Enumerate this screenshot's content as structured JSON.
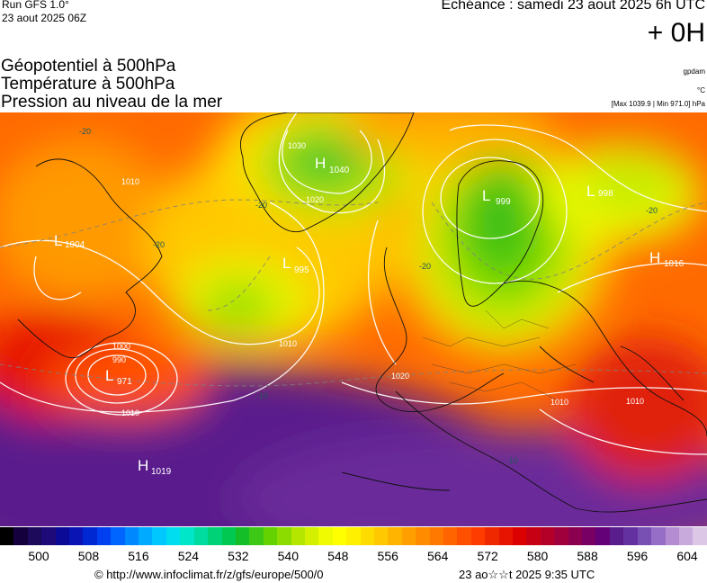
{
  "header": {
    "run_title": "Run GFS 1.0°",
    "run_date": "23 aout 2025 06Z",
    "echeance": "Echéance : samedi 23 aout 2025 6h UTC",
    "lead": "+ 0H"
  },
  "variables": {
    "line1": "Géopotentiel à 500hPa",
    "line2": "Température à 500hPa",
    "line3": "Pression au niveau de la mer",
    "unit1": "gpdam",
    "unit2": "°C",
    "unit3": "[Max 1039.9 | Min 971.0] hPa"
  },
  "map": {
    "pressure_centers": [
      {
        "type": "H",
        "value": "1040"
      },
      {
        "type": "L",
        "value": "999"
      },
      {
        "type": "L",
        "value": "998"
      },
      {
        "type": "L",
        "value": "1004"
      },
      {
        "type": "L",
        "value": "995"
      },
      {
        "type": "H",
        "value": "1016"
      },
      {
        "type": "L",
        "value": "971"
      },
      {
        "type": "H",
        "value": "1019"
      }
    ],
    "isobar_labels": [
      "1010",
      "1020",
      "1030",
      "1000",
      "990",
      "1020",
      "1010",
      "1010",
      "1010",
      "1010"
    ],
    "isotherm_labels": [
      "-20",
      "-20",
      "-20",
      "-20",
      "-20",
      "-10",
      "-10"
    ]
  },
  "colorbar": {
    "colors": [
      "#000000",
      "#14003c",
      "#1e0a5a",
      "#1e0a78",
      "#0a0a96",
      "#0a14b4",
      "#0028d2",
      "#0040f0",
      "#0064ff",
      "#0088ff",
      "#00aaff",
      "#00c8ff",
      "#00dcf0",
      "#00e6c8",
      "#00dca0",
      "#00d278",
      "#00c850",
      "#14be28",
      "#3cc814",
      "#64d200",
      "#8cdc00",
      "#b4e600",
      "#d2f000",
      "#f0fa00",
      "#ffff00",
      "#fff000",
      "#ffdc00",
      "#ffc800",
      "#ffb400",
      "#ffa000",
      "#ff8c00",
      "#ff7800",
      "#ff6400",
      "#ff5000",
      "#ff3c00",
      "#f02800",
      "#e61400",
      "#dc0000",
      "#c80014",
      "#b40028",
      "#a0003c",
      "#8c0050",
      "#780064",
      "#640078",
      "#5a1e8c",
      "#6432a0",
      "#7850b4",
      "#966ec8",
      "#b48cd2",
      "#c8aadc",
      "#dcc8e6"
    ],
    "tick_labels": [
      "500",
      "508",
      "516",
      "524",
      "532",
      "540",
      "548",
      "556",
      "564",
      "572",
      "580",
      "588",
      "596",
      "604"
    ]
  },
  "footer": {
    "credit": "© http://www.infoclimat.fr/z/gfs/europe/500/0",
    "stamp": "23 ao☆☆t 2025  9:35 UTC"
  }
}
